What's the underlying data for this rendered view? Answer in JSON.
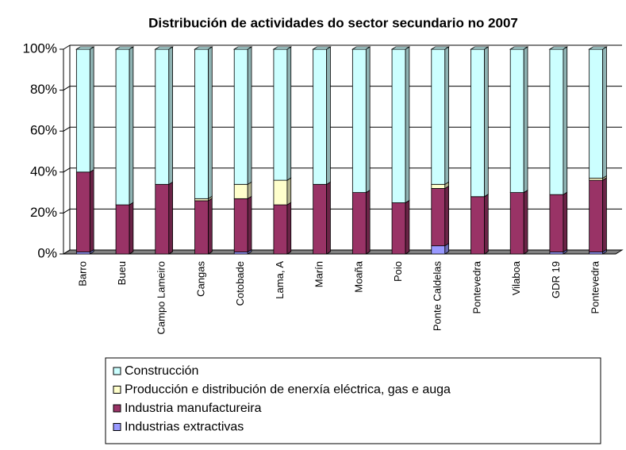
{
  "chart_data": {
    "type": "bar",
    "stacked": true,
    "title": "Distribución de actividades do sector secundario no 2007",
    "categories": [
      "Barro",
      "Bueu",
      "Campo Lameiro",
      "Cangas",
      "Cotobade",
      "Lama, A",
      "Marín",
      "Moaña",
      "Poio",
      "Ponte Caldelas",
      "Pontevedra",
      "Vilaboa",
      "GDR 19",
      "Pontevedra"
    ],
    "series": [
      {
        "name": "Industrias extractivas",
        "color": "#9999ff",
        "values": [
          1,
          0,
          0,
          0,
          1,
          0,
          0,
          0,
          0,
          4,
          0,
          0,
          1,
          1
        ]
      },
      {
        "name": "Industria manufactureira",
        "color": "#993366",
        "values": [
          39,
          24,
          34,
          26,
          26,
          24,
          34,
          30,
          25,
          28,
          28,
          30,
          28,
          35
        ]
      },
      {
        "name": "Producción e distribución de enerxía eléctrica, gas e auga",
        "color": "#ffffcc",
        "values": [
          0,
          0,
          0,
          1,
          7,
          12,
          0,
          0,
          0,
          2,
          0,
          0,
          0,
          1
        ]
      },
      {
        "name": "Construcción",
        "color": "#ccffff",
        "values": [
          60,
          76,
          66,
          73,
          66,
          64,
          66,
          70,
          75,
          66,
          72,
          70,
          71,
          63
        ]
      }
    ],
    "ylim": [
      0,
      100
    ],
    "yticks": [
      {
        "value": 0,
        "label": "0%"
      },
      {
        "value": 20,
        "label": "20%"
      },
      {
        "value": 40,
        "label": "40%"
      },
      {
        "value": 60,
        "label": "60%"
      },
      {
        "value": 80,
        "label": "80%"
      },
      {
        "value": 100,
        "label": "100%"
      }
    ],
    "grid": true
  }
}
